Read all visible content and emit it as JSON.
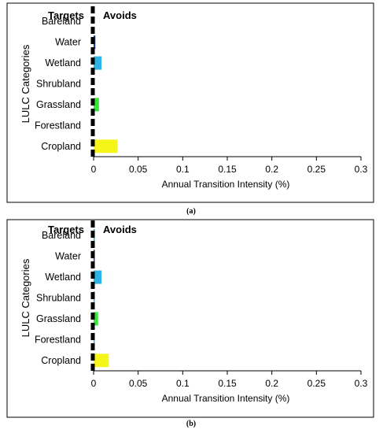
{
  "chart_data": [
    {
      "type": "bar",
      "orientation": "horizontal",
      "panel_label": "(a)",
      "categories": [
        "Bareland",
        "Water",
        "Wetland",
        "Shrubland",
        "Grassland",
        "Forestland",
        "Cropland"
      ],
      "values": [
        0,
        0.002,
        0.009,
        0,
        0.006,
        0,
        0.027
      ],
      "bar_colors": [
        "#2db4e6",
        "#1f3f9a",
        "#2db4e6",
        "#2db4e6",
        "#33e833",
        "#2db4e6",
        "#f5f51a"
      ],
      "title": "",
      "xlabel": "Annual Transition Intensity (%)",
      "ylabel": "LULC Categories",
      "xlim": [
        0,
        0.3
      ],
      "xticks": [
        "0",
        "0.05",
        "0.1",
        "0.15",
        "0.2",
        "0.25",
        "0.3"
      ],
      "uniform_line_label_left": "Targets",
      "uniform_line_label_right": "Avoids",
      "grid": false
    },
    {
      "type": "bar",
      "orientation": "horizontal",
      "panel_label": "(b)",
      "categories": [
        "Bareland",
        "Water",
        "Wetland",
        "Shrubland",
        "Grassland",
        "Forestland",
        "Cropland"
      ],
      "values": [
        0.001,
        0.001,
        0.009,
        0.001,
        0.005,
        0.001,
        0.017
      ],
      "bar_colors": [
        "#2db4e6",
        "#1f3f9a",
        "#2db4e6",
        "#2db4e6",
        "#33e833",
        "#2db4e6",
        "#f5f51a"
      ],
      "title": "",
      "xlabel": "Annual Transition  Intensity (%)",
      "ylabel": "LULC Categories",
      "xlim": [
        0,
        0.3
      ],
      "xticks": [
        "0",
        "0.05",
        "0.1",
        "0.15",
        "0.2",
        "0.25",
        "0.3"
      ],
      "uniform_line_label_left": "Targets",
      "uniform_line_label_right": "Avoids",
      "grid": false
    }
  ]
}
